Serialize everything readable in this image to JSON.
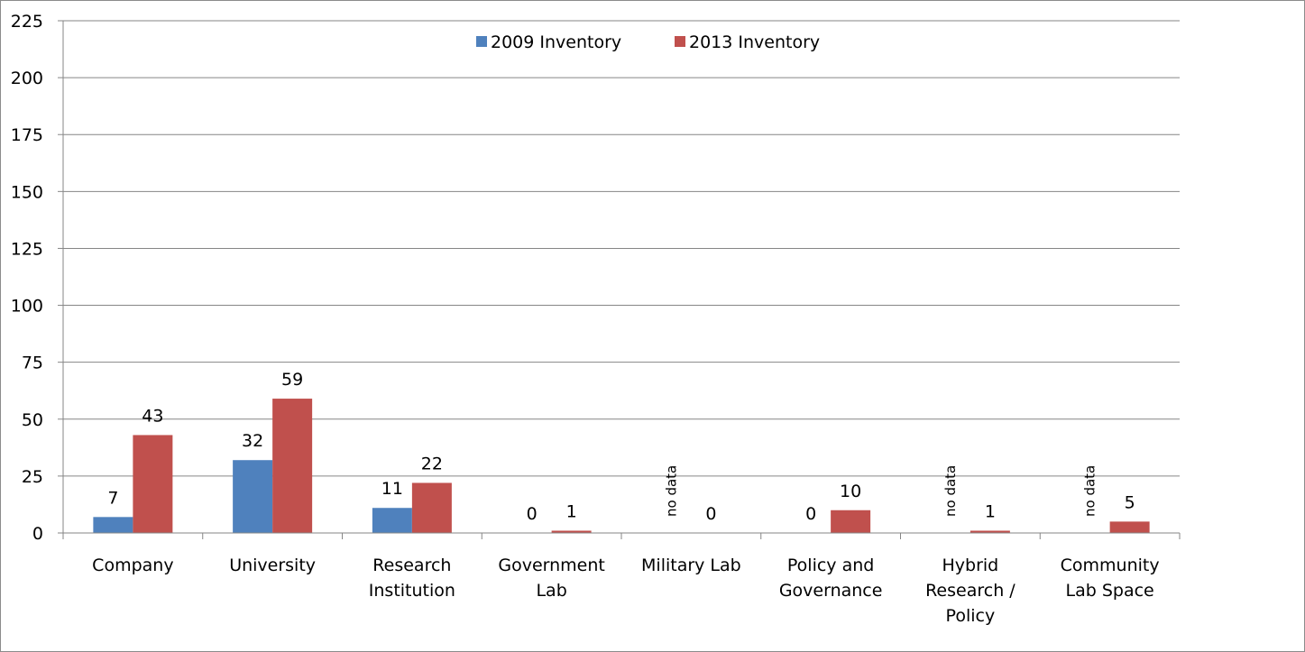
{
  "chart_data": {
    "type": "bar",
    "title": "",
    "xlabel": "",
    "ylabel": "",
    "ylim": [
      0,
      225
    ],
    "yticks": [
      0,
      25,
      50,
      75,
      100,
      125,
      150,
      175,
      200,
      225
    ],
    "grid": true,
    "legend_position": "top-center",
    "categories": [
      [
        "Company"
      ],
      [
        "University"
      ],
      [
        "Research",
        "Institution"
      ],
      [
        "Government",
        "Lab"
      ],
      [
        "Military Lab"
      ],
      [
        "Policy and",
        "Governance"
      ],
      [
        "Hybrid",
        "Research /",
        "Policy"
      ],
      [
        "Community",
        "Lab Space"
      ]
    ],
    "series": [
      {
        "name": "2009 Inventory",
        "color": "#4f81bd",
        "values": [
          7,
          32,
          11,
          0,
          null,
          0,
          null,
          null
        ],
        "labels": [
          "7",
          "32",
          "11",
          "0",
          "no data",
          "0",
          "no data",
          "no data"
        ]
      },
      {
        "name": "2013 Inventory",
        "color": "#c0504d",
        "values": [
          43,
          59,
          22,
          1,
          0,
          10,
          1,
          5
        ],
        "labels": [
          "43",
          "59",
          "22",
          "1",
          "0",
          "10",
          "1",
          "5"
        ]
      }
    ]
  }
}
